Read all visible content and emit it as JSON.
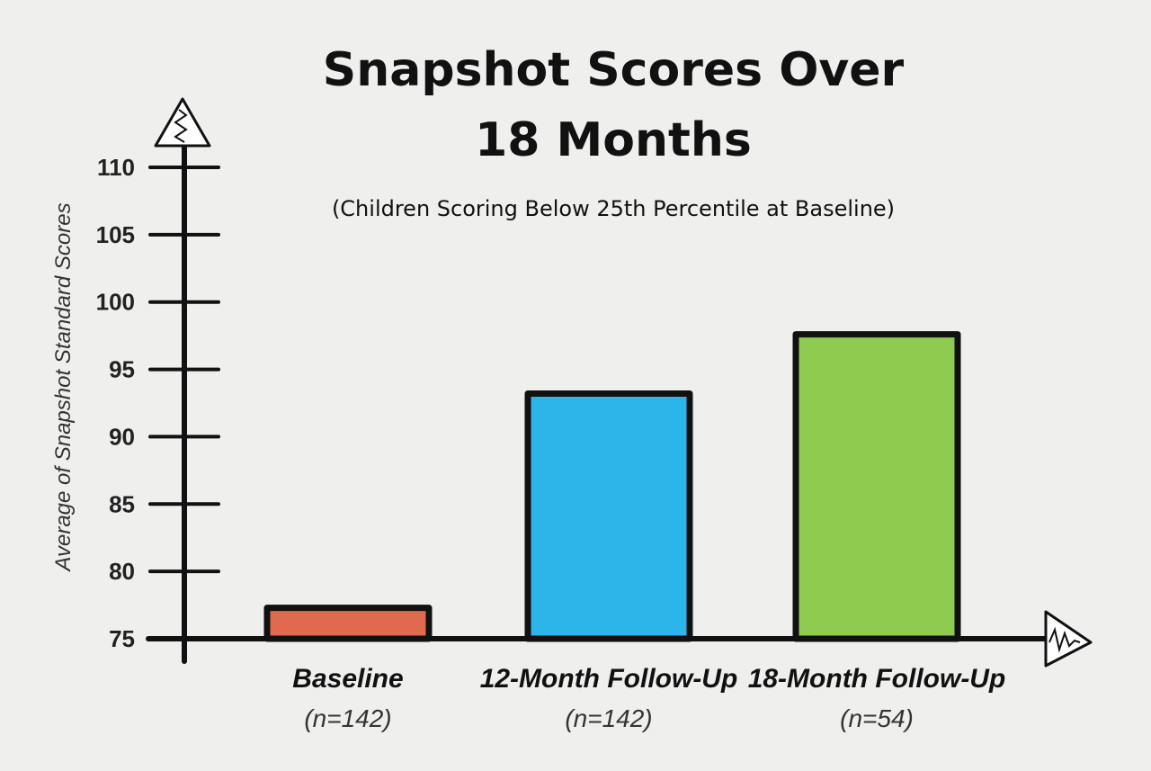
{
  "chart_data": {
    "type": "bar",
    "title_lines": [
      "Snapshot Scores Over",
      "18 Months"
    ],
    "subtitle": "(Children Scoring Below 25th Percentile at Baseline)",
    "ylabel": "Average of Snapshot Standard Scores",
    "xlabel": "",
    "ylim": [
      75,
      110
    ],
    "yticks": [
      "75",
      "80",
      "85",
      "90",
      "95",
      "100",
      "105",
      "110"
    ],
    "categories": [
      "Baseline",
      "12-Month Follow-Up",
      "18-Month Follow-Up"
    ],
    "category_sublabels": [
      "(n=142)",
      "(n=142)",
      "(n=54)"
    ],
    "values": [
      77.3,
      93.2,
      97.6
    ],
    "colors": [
      "#e06a4e",
      "#2bb5e8",
      "#8fcb4f"
    ],
    "grid": false,
    "legend": "none"
  }
}
